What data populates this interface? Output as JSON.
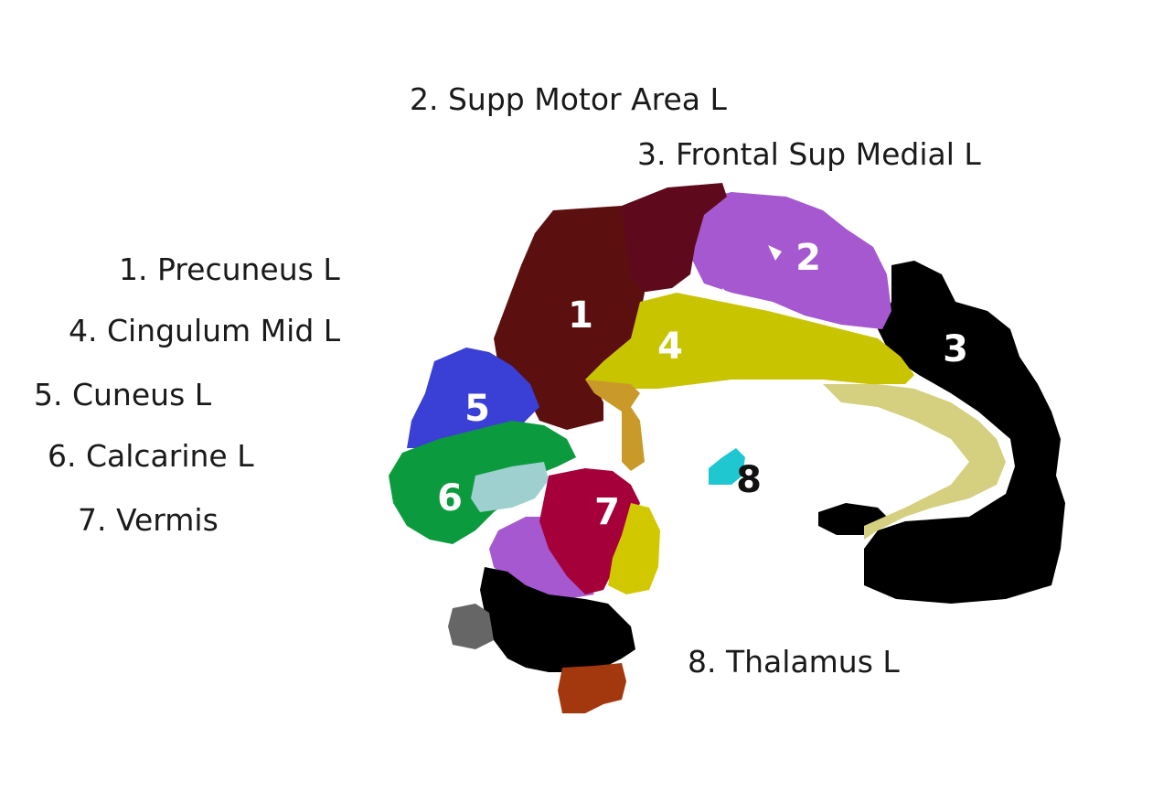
{
  "legend": [
    {
      "key": "2",
      "text": "2. Supp Motor Area L"
    },
    {
      "key": "3",
      "text": "3. Frontal Sup Medial L"
    },
    {
      "key": "1",
      "text": "1.  Precuneus L"
    },
    {
      "key": "4",
      "text": "4. Cingulum Mid L"
    },
    {
      "key": "5",
      "text": "5. Cuneus L"
    },
    {
      "key": "6",
      "text": "6. Calcarine L"
    },
    {
      "key": "7",
      "text": "7. Vermis"
    },
    {
      "key": "8",
      "text": "8. Thalamus L"
    }
  ],
  "region_numbers": {
    "r1": "1",
    "r2": "2",
    "r3": "3",
    "r4": "4",
    "r5": "5",
    "r6": "6",
    "r7": "7",
    "r8": "8"
  },
  "colors": {
    "precuneus": "#5c0f0f",
    "supp_motor": "#5e0a1c",
    "frontal_sup_medial": "#000000",
    "cingulum_mid": "#c9c400",
    "cingulum_post_light": "#d4d080",
    "cuneus": "#3a3fd6",
    "calcarine": "#0b9b3e",
    "calcarine_light": "#9fd0d0",
    "vermis": "#a6003a",
    "thalamus": "#1fc7d0",
    "purple": "#a558cf",
    "ochre": "#c99a2a",
    "grey": "#666666",
    "rust": "#a3380f",
    "yellow_small": "#d2c800"
  }
}
